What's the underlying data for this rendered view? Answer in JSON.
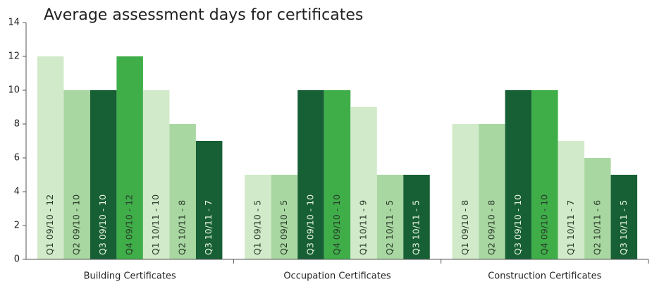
{
  "chart_data": {
    "type": "bar",
    "title": "Average assessment days for certificates",
    "categories": [
      "Building Certificates",
      "Occupation Certificates",
      "Construction Certificates"
    ],
    "series": [
      {
        "color": "#d1eac9",
        "values": [
          12,
          5,
          8
        ],
        "value_labels": [
          "Q1 09/10 - 12",
          "Q1 09/10 - 5",
          "Q1 09/10 - 8"
        ]
      },
      {
        "color": "#a9d7a2",
        "values": [
          10,
          5,
          8
        ],
        "value_labels": [
          "Q2 09/10 - 10",
          "Q2 09/10 - 5",
          "Q2 09/10 - 8"
        ]
      },
      {
        "color": "#175f34",
        "values": [
          10,
          10,
          10
        ],
        "value_labels": [
          "Q3 09/10 - 10",
          "Q3 09/10 - 10",
          "Q3 09/10 - 10"
        ]
      },
      {
        "color": "#3fae49",
        "values": [
          12,
          10,
          10
        ],
        "value_labels": [
          "Q4 09/10 - 12",
          "Q4 09/10 - 10",
          "Q4 09/10 - 10"
        ]
      },
      {
        "color": "#d1eac9",
        "values": [
          10,
          9,
          7
        ],
        "value_labels": [
          "Q1 10/11 - 10",
          "Q1 10/11 - 9",
          "Q1 10/11 - 7"
        ]
      },
      {
        "color": "#a9d7a2",
        "values": [
          8,
          5,
          6
        ],
        "value_labels": [
          "Q2 10/11 - 8",
          "Q2 10/11 - 5",
          "Q2 10/11 - 6"
        ]
      },
      {
        "color": "#175f34",
        "values": [
          7,
          5,
          5
        ],
        "value_labels": [
          "Q3 10/11 - 7",
          "Q3 10/11 - 5",
          "Q3 10/11 - 5"
        ]
      }
    ],
    "ylim": [
      0,
      14
    ],
    "yticks": [
      0,
      2,
      4,
      6,
      8,
      10,
      12,
      14
    ],
    "grid": false
  }
}
